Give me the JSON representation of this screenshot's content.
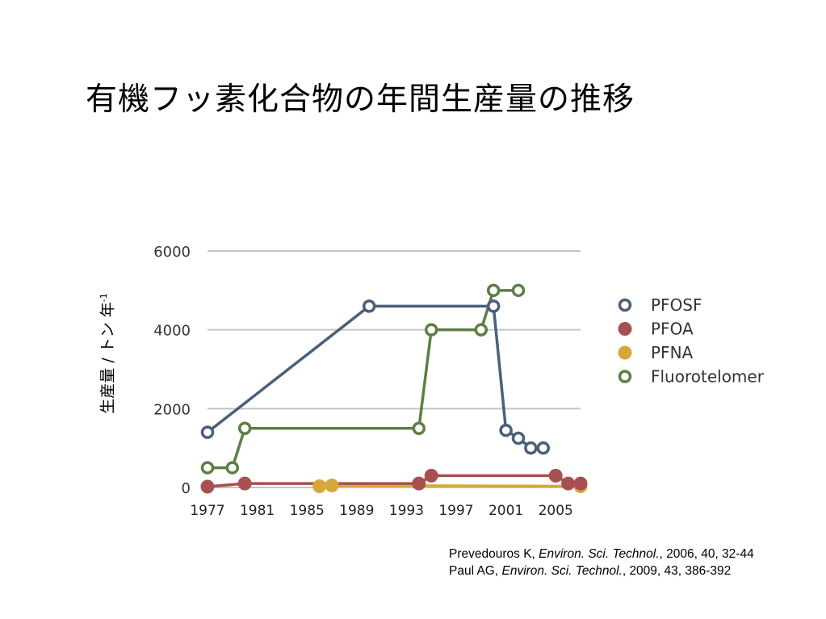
{
  "slide": {
    "title": "有機フッ素化合物の年間生産量の推移"
  },
  "references": [
    {
      "author": "Prevedouros K, ",
      "journal": "Environ. Sci. Technol.",
      "rest": ", 2006, 40, 32-44"
    },
    {
      "author": "Paul AG, ",
      "journal": "Environ. Sci. Technol.",
      "rest": ", 2009, 43, 386-392"
    }
  ],
  "chart_data": {
    "type": "line",
    "title": "",
    "xlabel": "",
    "ylabel_main": "生産量 / トン 年",
    "ylabel_sup": "-1",
    "xlim": [
      1977,
      2007
    ],
    "ylim": [
      0,
      6000
    ],
    "yticks": [
      0,
      2000,
      4000,
      6000
    ],
    "xticks": [
      1977,
      1981,
      1985,
      1989,
      1993,
      1997,
      2001,
      2005
    ],
    "grid": true,
    "legend_position": "right",
    "series": [
      {
        "name": "PFOSF",
        "color": "#4a6079",
        "marker": "open",
        "points": [
          [
            1977,
            1400
          ],
          [
            1990,
            4600
          ],
          [
            2000,
            4600
          ],
          [
            2001,
            1450
          ],
          [
            2002,
            1250
          ],
          [
            2003,
            1000
          ],
          [
            2004,
            1000
          ]
        ]
      },
      {
        "name": "PFOA",
        "color": "#a85050",
        "marker": "filled",
        "points": [
          [
            1977,
            20
          ],
          [
            1980,
            100
          ],
          [
            1994,
            100
          ],
          [
            1995,
            300
          ],
          [
            2005,
            300
          ],
          [
            2006,
            100
          ],
          [
            2007,
            100
          ]
        ]
      },
      {
        "name": "PFNA",
        "color": "#d4a93a",
        "marker": "filled",
        "points": [
          [
            1986,
            30
          ],
          [
            1987,
            50
          ],
          [
            2007,
            30
          ]
        ]
      },
      {
        "name": "Fluorotelomer",
        "color": "#5d7f44",
        "marker": "open",
        "points": [
          [
            1977,
            500
          ],
          [
            1979,
            500
          ],
          [
            1980,
            1500
          ],
          [
            1994,
            1500
          ],
          [
            1995,
            4000
          ],
          [
            1999,
            4000
          ],
          [
            2000,
            5000
          ],
          [
            2002,
            5000
          ]
        ]
      }
    ]
  }
}
